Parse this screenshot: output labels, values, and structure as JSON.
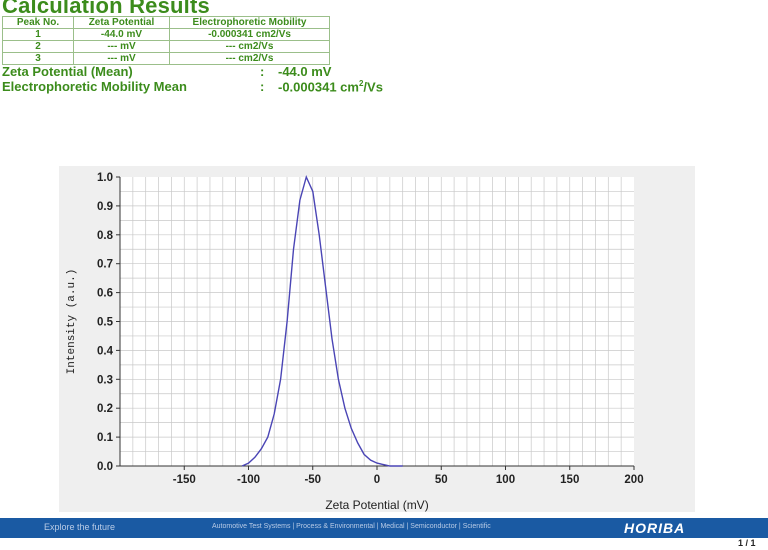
{
  "title": "Calculation Results",
  "table": {
    "headers": [
      "Peak No.",
      "Zeta Potential",
      "Electrophoretic Mobility"
    ],
    "rows": [
      [
        "1",
        "-44.0 mV",
        "-0.000341 cm2/Vs"
      ],
      [
        "2",
        "--- mV",
        "--- cm2/Vs"
      ],
      [
        "3",
        "--- mV",
        "--- cm2/Vs"
      ]
    ]
  },
  "summary": {
    "zeta_label": "Zeta Potential (Mean)",
    "zeta_value": "-44.0 mV",
    "mobility_label": "Electrophoretic Mobility Mean",
    "mobility_value": "-0.000341 cm",
    "mobility_unit": "/Vs",
    "colon": ":"
  },
  "chart_data": {
    "type": "line",
    "xlabel": "Zeta Potential (mV)",
    "ylabel": "Intensity (a.u.)",
    "xlim": [
      -200,
      200
    ],
    "ylim": [
      0,
      1.0
    ],
    "x_ticks": [
      -150,
      -100,
      -50,
      0,
      50,
      100,
      150,
      200
    ],
    "y_ticks": [
      "0.0",
      "0.1",
      "0.2",
      "0.3",
      "0.4",
      "0.5",
      "0.6",
      "0.7",
      "0.8",
      "0.9",
      "1.0"
    ],
    "grid": true,
    "line_color": "#4a45b5",
    "series": [
      {
        "x": [
          -105,
          -100,
          -95,
          -90,
          -85,
          -80,
          -75,
          -70,
          -65,
          -60,
          -55,
          -50,
          -45,
          -40,
          -35,
          -30,
          -25,
          -20,
          -15,
          -10,
          -5,
          0,
          5,
          10,
          15,
          20
        ],
        "y": [
          0.0,
          0.01,
          0.03,
          0.06,
          0.1,
          0.18,
          0.3,
          0.5,
          0.75,
          0.92,
          1.0,
          0.95,
          0.8,
          0.62,
          0.44,
          0.3,
          0.2,
          0.13,
          0.08,
          0.04,
          0.02,
          0.01,
          0.005,
          0.0,
          0.0,
          0.0
        ]
      }
    ]
  },
  "footer": {
    "tagline": "Explore the future",
    "nav": "Automotive Test Systems  |  Process & Environmental  |  Medical  |  Semiconductor  |  Scientific",
    "brand": "HORIBA"
  },
  "page_number": "1 / 1"
}
